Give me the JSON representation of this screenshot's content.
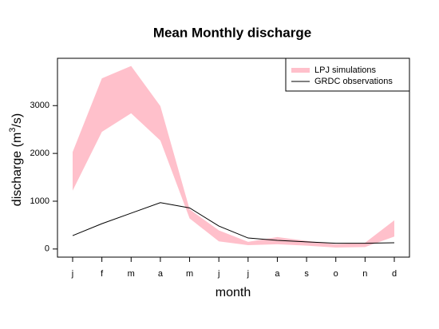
{
  "chart_data": {
    "type": "line",
    "title": "Mean Monthly discharge",
    "x_label": "month",
    "y_label_parts": [
      "discharge (m",
      "3",
      "/s)"
    ],
    "categories": [
      "j",
      "f",
      "m",
      "a",
      "m",
      "j",
      "j",
      "a",
      "s",
      "o",
      "n",
      "d"
    ],
    "series": [
      {
        "name": "LPJ simulations",
        "color": "#ffc0cb",
        "upper": [
          2030,
          3570,
          3830,
          2990,
          830,
          390,
          150,
          250,
          170,
          100,
          130,
          600
        ],
        "lower": [
          1220,
          2450,
          2840,
          2270,
          640,
          160,
          80,
          100,
          70,
          30,
          40,
          260
        ]
      },
      {
        "name": "GRDC observations",
        "color": "#000000",
        "values": [
          280,
          530,
          750,
          970,
          860,
          480,
          230,
          180,
          150,
          120,
          120,
          130
        ]
      }
    ],
    "ylim": [
      -170,
      3990
    ],
    "yticks": [
      0,
      1000,
      2000,
      3000
    ],
    "legend": "top-right"
  }
}
